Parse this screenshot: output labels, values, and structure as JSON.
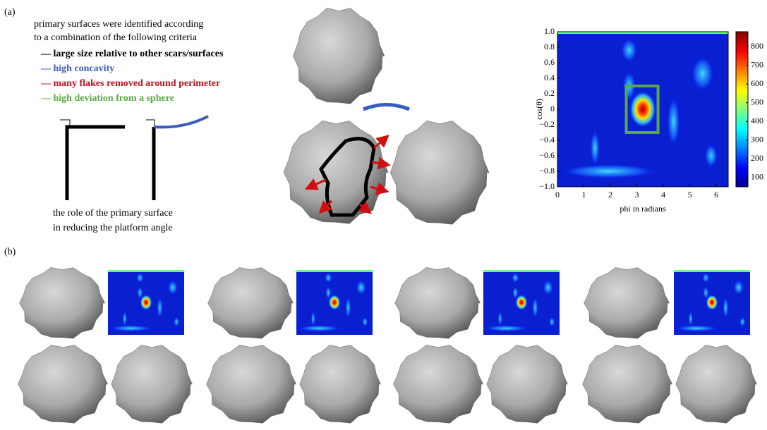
{
  "panel_a": {
    "label": "(a)",
    "intro": [
      "primary surfaces were identified according",
      "to a combination of the following criteria"
    ],
    "criteria": [
      {
        "text": "— large size relative to other scars/surfaces",
        "color": "#000000"
      },
      {
        "text": "— high concavity",
        "color": "#3a5bbf"
      },
      {
        "text": "— many flakes removed around perimeter",
        "color": "#c0141c"
      },
      {
        "text": "— high deviation from a sphere",
        "color": "#5aa845"
      }
    ],
    "caption": [
      "the role of the primary surface",
      "in reducing the platform angle"
    ]
  },
  "panel_b": {
    "label": "(b)"
  },
  "chart_data": {
    "type": "heatmap",
    "xlabel": "phi in radians",
    "ylabel": "cos(θ)",
    "xlim": [
      0,
      6.45
    ],
    "xticks": [
      0,
      1,
      2,
      3,
      4,
      5,
      6
    ],
    "ylim": [
      -1,
      1
    ],
    "yticks": [
      {
        "value": -1,
        "label": "−1.0"
      },
      {
        "value": -0.8,
        "label": "−0.8"
      },
      {
        "value": -0.6,
        "label": "−0.6"
      },
      {
        "value": -0.4,
        "label": "−0.4"
      },
      {
        "value": -0.2,
        "label": "−0.2"
      },
      0,
      0.2,
      0.4,
      0.6,
      0.8,
      {
        "value": 1,
        "label": "1.0"
      }
    ],
    "clim": [
      50,
      880
    ],
    "cticks": [
      100,
      200,
      300,
      400,
      500,
      600,
      700,
      800
    ],
    "highlight": {
      "x": [
        2.6,
        3.8
      ],
      "y": [
        -0.3,
        0.3
      ],
      "color": "#5aa845"
    }
  }
}
